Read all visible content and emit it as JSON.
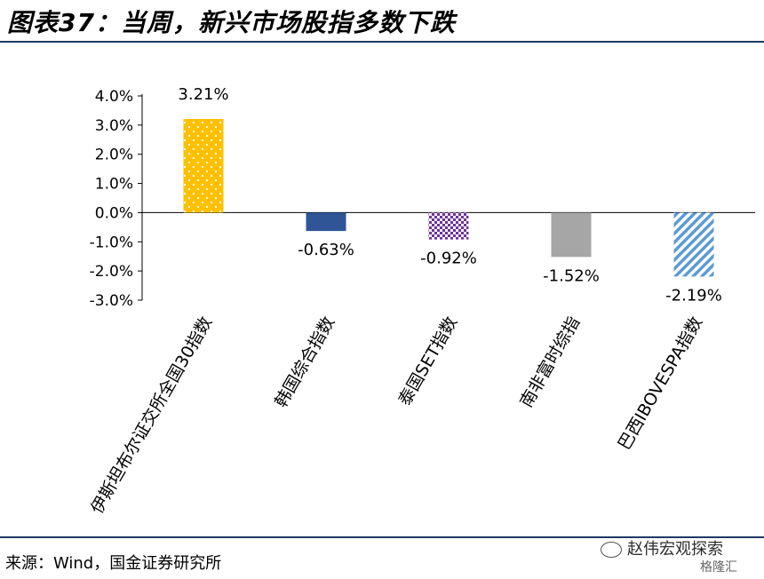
{
  "header": {
    "title": "图表37：当周，新兴市场股指多数下跌"
  },
  "footer": {
    "source": "来源：Wind，国金证券研究所",
    "watermark": "赵伟宏观探索",
    "watermark_sub": "格隆汇"
  },
  "chart_data": {
    "type": "bar",
    "title": "",
    "xlabel": "",
    "ylabel": "",
    "categories": [
      "伊斯坦布尔证交所全国30指数",
      "韩国综合指数",
      "泰国SET指数",
      "南非富时综指",
      "巴西IBOVESPA指数"
    ],
    "values": [
      3.21,
      -0.63,
      -0.92,
      -1.52,
      -2.19
    ],
    "data_labels": [
      "3.21%",
      "-0.63%",
      "-0.92%",
      "-1.52%",
      "-2.19%"
    ],
    "ylim": [
      -3.0,
      4.0
    ],
    "yticks": [
      4.0,
      3.0,
      2.0,
      1.0,
      0.0,
      -1.0,
      -2.0,
      -3.0
    ],
    "ytick_labels": [
      "4.0%",
      "3.0%",
      "2.0%",
      "1.0%",
      "0.0%",
      "-1.0%",
      "-2.0%",
      "-3.0%"
    ],
    "colors": [
      "#ffc000",
      "#2f5597",
      "#7030a0",
      "#a6a6a6",
      "#5b9bd5"
    ],
    "patterns": [
      "dots",
      "solid",
      "checker",
      "solid",
      "diagonal"
    ],
    "grid": false,
    "legend": "none"
  }
}
